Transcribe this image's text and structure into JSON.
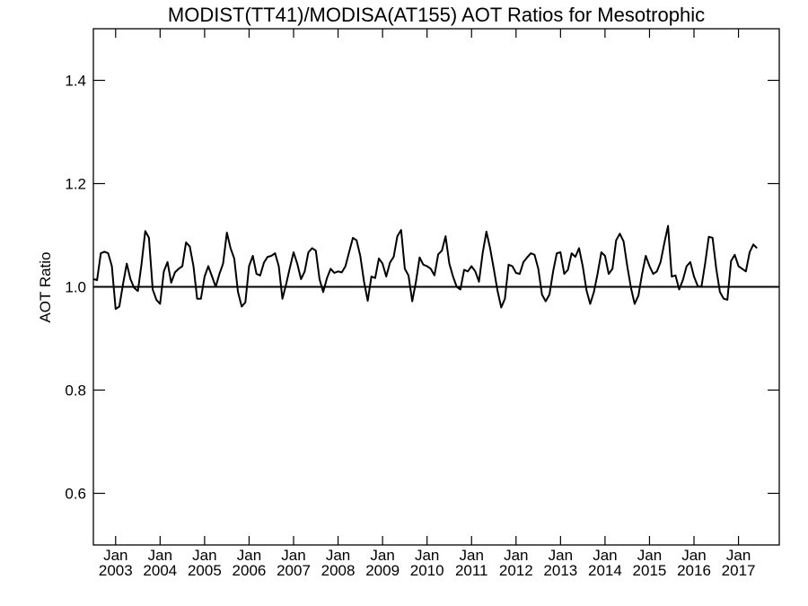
{
  "chart_data": {
    "type": "line",
    "title": "MODIST(TT41)/MODISA(AT155)  AOT Ratios for Mesotrophic",
    "xlabel": "",
    "ylabel": "AOT Ratio",
    "ylim": [
      0.5,
      1.5
    ],
    "xlim": [
      "2002-07",
      "2017-12"
    ],
    "yticks": [
      "0.6",
      "0.8",
      "1.0",
      "1.2",
      "1.4"
    ],
    "yticks_values": [
      0.6,
      0.8,
      1.0,
      1.2,
      1.4
    ],
    "xticks": [
      {
        "month": "Jan",
        "year": "2003",
        "date": "2003-01"
      },
      {
        "month": "Jan",
        "year": "2004",
        "date": "2004-01"
      },
      {
        "month": "Jan",
        "year": "2005",
        "date": "2005-01"
      },
      {
        "month": "Jan",
        "year": "2006",
        "date": "2006-01"
      },
      {
        "month": "Jan",
        "year": "2007",
        "date": "2007-01"
      },
      {
        "month": "Jan",
        "year": "2008",
        "date": "2008-01"
      },
      {
        "month": "Jan",
        "year": "2009",
        "date": "2009-01"
      },
      {
        "month": "Jan",
        "year": "2010",
        "date": "2010-01"
      },
      {
        "month": "Jan",
        "year": "2011",
        "date": "2011-01"
      },
      {
        "month": "Jan",
        "year": "2012",
        "date": "2012-01"
      },
      {
        "month": "Jan",
        "year": "2013",
        "date": "2013-01"
      },
      {
        "month": "Jan",
        "year": "2014",
        "date": "2014-01"
      },
      {
        "month": "Jan",
        "year": "2015",
        "date": "2015-01"
      },
      {
        "month": "Jan",
        "year": "2016",
        "date": "2016-01"
      },
      {
        "month": "Jan",
        "year": "2017",
        "date": "2017-01"
      }
    ],
    "reference_line": 1.0,
    "grid": false,
    "line_color": "#000000",
    "series": [
      {
        "start": "2002-07",
        "step": "1 month",
        "values": [
          1.015,
          1.013,
          1.065,
          1.068,
          1.065,
          1.04,
          0.957,
          0.962,
          1.005,
          1.045,
          1.015,
          0.998,
          0.992,
          1.045,
          1.108,
          1.095,
          0.995,
          0.975,
          0.967,
          1.03,
          1.048,
          1.008,
          1.028,
          1.035,
          1.04,
          1.086,
          1.078,
          1.04,
          0.977,
          0.977,
          1.02,
          1.04,
          1.02,
          1.0,
          1.025,
          1.045,
          1.105,
          1.075,
          1.055,
          0.99,
          0.962,
          0.97,
          1.04,
          1.06,
          1.025,
          1.022,
          1.047,
          1.058,
          1.06,
          1.065,
          1.04,
          0.977,
          1.005,
          1.037,
          1.067,
          1.045,
          1.015,
          1.03,
          1.067,
          1.075,
          1.07,
          1.015,
          0.99,
          1.017,
          1.035,
          1.027,
          1.03,
          1.028,
          1.04,
          1.068,
          1.095,
          1.09,
          1.06,
          1.01,
          0.973,
          1.02,
          1.017,
          1.055,
          1.045,
          1.02,
          1.047,
          1.058,
          1.098,
          1.11,
          1.035,
          1.022,
          0.972,
          1.01,
          1.057,
          1.043,
          1.04,
          1.035,
          1.022,
          1.063,
          1.07,
          1.098,
          1.045,
          1.02,
          1.0,
          0.995,
          1.033,
          1.03,
          1.04,
          1.03,
          1.01,
          1.065,
          1.107,
          1.075,
          1.035,
          0.993,
          0.96,
          0.977,
          1.043,
          1.04,
          1.027,
          1.025,
          1.048,
          1.057,
          1.065,
          1.062,
          1.035,
          0.985,
          0.972,
          0.985,
          1.03,
          1.065,
          1.067,
          1.025,
          1.033,
          1.065,
          1.058,
          1.075,
          1.04,
          0.993,
          0.967,
          0.99,
          1.025,
          1.067,
          1.06,
          1.025,
          1.035,
          1.09,
          1.103,
          1.088,
          1.04,
          0.998,
          0.967,
          0.983,
          1.025,
          1.06,
          1.04,
          1.025,
          1.03,
          1.048,
          1.085,
          1.118,
          1.02,
          1.022,
          0.995,
          1.013,
          1.04,
          1.048,
          1.02,
          1.002,
          1.0,
          1.045,
          1.097,
          1.095,
          1.035,
          0.99,
          0.977,
          0.975,
          1.05,
          1.062,
          1.04,
          1.035,
          1.03,
          1.067,
          1.082,
          1.075
        ]
      }
    ]
  }
}
